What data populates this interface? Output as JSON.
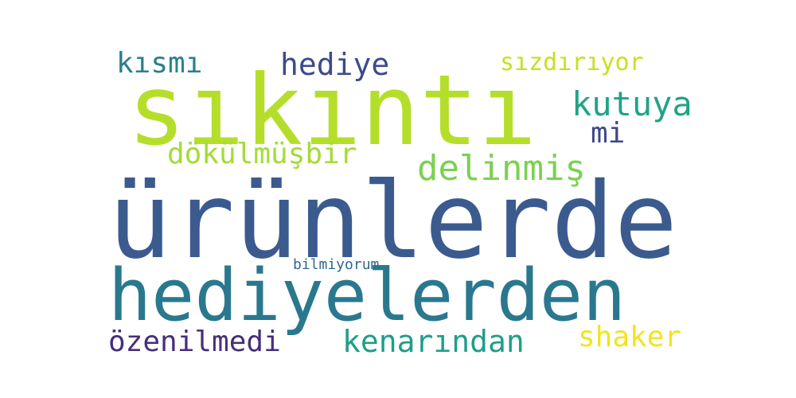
{
  "wordcloud": {
    "words": [
      {
        "text": "sıkıntı",
        "color": "#b5de2b"
      },
      {
        "text": "ürünlerde",
        "color": "#3b5b8f"
      },
      {
        "text": "hediyelerden",
        "color": "#2a788e"
      },
      {
        "text": "hediye",
        "color": "#3e4a89"
      },
      {
        "text": "kısmı",
        "color": "#2c7f8d"
      },
      {
        "text": "sızdırıyor",
        "color": "#c8e020"
      },
      {
        "text": "kutuya",
        "color": "#20a386"
      },
      {
        "text": "mi",
        "color": "#3f4788"
      },
      {
        "text": "dökülmüşbir",
        "color": "#a5db36"
      },
      {
        "text": "delinmiş",
        "color": "#7ad151"
      },
      {
        "text": "bilmiyorum",
        "color": "#31688e"
      },
      {
        "text": "özenilmedi",
        "color": "#472d7b"
      },
      {
        "text": "kenarından",
        "color": "#1f9e89"
      },
      {
        "text": "shaker",
        "color": "#f0e51c"
      }
    ]
  }
}
